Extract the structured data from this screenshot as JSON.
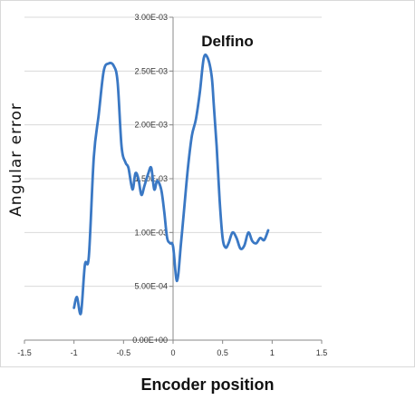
{
  "chart_data": {
    "type": "line",
    "title": "Delfino",
    "xlabel": "Encoder position",
    "ylabel": "Angular  error",
    "xlim": [
      -1.5,
      1.5
    ],
    "ylim": [
      0,
      0.003
    ],
    "x_ticks": [
      -1.5,
      -1,
      -0.5,
      0,
      0.5,
      1,
      1.5
    ],
    "x_tick_labels": [
      "-1.5",
      "-1",
      "-0.5",
      "0",
      "0.5",
      "1",
      "1.5"
    ],
    "y_ticks": [
      0,
      0.0005,
      0.001,
      0.0015,
      0.002,
      0.0025,
      0.003
    ],
    "y_tick_labels": [
      "0.00E+00",
      "5.00E-04",
      "1.00E-03",
      "1.50E-03",
      "2.00E-03",
      "2.50E-03",
      "3.00E-03"
    ],
    "grid": true,
    "legend": "none",
    "series": [
      {
        "color": "#3a78c4",
        "x": [
          -1.0,
          -0.97,
          -0.93,
          -0.89,
          -0.85,
          -0.8,
          -0.75,
          -0.7,
          -0.65,
          -0.6,
          -0.56,
          -0.52,
          -0.48,
          -0.45,
          -0.41,
          -0.38,
          -0.35,
          -0.32,
          -0.29,
          -0.25,
          -0.22,
          -0.19,
          -0.16,
          -0.12,
          -0.09,
          -0.06,
          -0.03,
          0.0,
          0.04,
          0.08,
          0.11,
          0.15,
          0.19,
          0.23,
          0.27,
          0.31,
          0.35,
          0.39,
          0.41,
          0.44,
          0.47,
          0.5,
          0.53,
          0.56,
          0.6,
          0.64,
          0.68,
          0.72,
          0.76,
          0.8,
          0.84,
          0.88,
          0.92,
          0.96
        ],
        "y": [
          0.0003,
          0.0004,
          0.00025,
          0.0007,
          0.00078,
          0.0017,
          0.0021,
          0.0025,
          0.00257,
          0.00255,
          0.0024,
          0.0018,
          0.00165,
          0.0016,
          0.0014,
          0.00155,
          0.0015,
          0.00135,
          0.00143,
          0.00155,
          0.0016,
          0.0014,
          0.00148,
          0.0014,
          0.0012,
          0.00095,
          0.0009,
          0.00087,
          0.00055,
          0.0009,
          0.0012,
          0.0016,
          0.0019,
          0.00205,
          0.0023,
          0.00262,
          0.00262,
          0.00245,
          0.0022,
          0.0018,
          0.0013,
          0.00095,
          0.00086,
          0.0009,
          0.001,
          0.00095,
          0.00085,
          0.00088,
          0.001,
          0.00092,
          0.0009,
          0.00095,
          0.00093,
          0.00102
        ]
      }
    ]
  }
}
